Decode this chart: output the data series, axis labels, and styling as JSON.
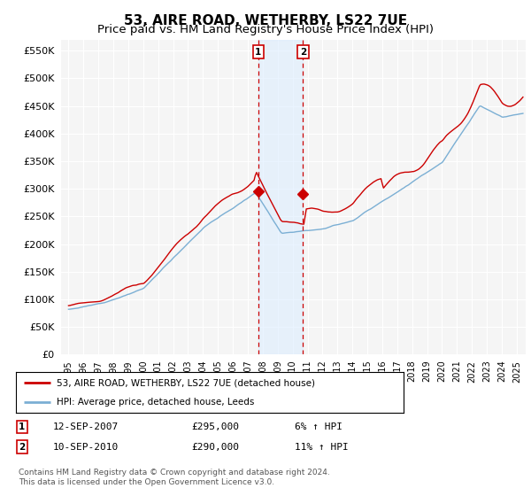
{
  "title": "53, AIRE ROAD, WETHERBY, LS22 7UE",
  "subtitle": "Price paid vs. HM Land Registry's House Price Index (HPI)",
  "title_fontsize": 11,
  "subtitle_fontsize": 9.5,
  "ylabel_values": [
    0,
    50000,
    100000,
    150000,
    200000,
    250000,
    300000,
    350000,
    400000,
    450000,
    500000,
    550000
  ],
  "ylim": [
    0,
    570000
  ],
  "xlim_start": 1994.5,
  "xlim_end": 2025.6,
  "background_color": "#ffffff",
  "plot_bg_color": "#f5f5f5",
  "grid_color": "#ffffff",
  "sale1_x": 2007.7,
  "sale1_y": 295000,
  "sale1_label": "1",
  "sale2_x": 2010.7,
  "sale2_y": 290000,
  "sale2_label": "2",
  "sale_color": "#cc0000",
  "hpi_line_color": "#7bafd4",
  "price_line_color": "#cc0000",
  "legend_label_price": "53, AIRE ROAD, WETHERBY, LS22 7UE (detached house)",
  "legend_label_hpi": "HPI: Average price, detached house, Leeds",
  "transaction1_num": "1",
  "transaction1_date": "12-SEP-2007",
  "transaction1_price": "£295,000",
  "transaction1_hpi": "6% ↑ HPI",
  "transaction2_num": "2",
  "transaction2_date": "10-SEP-2010",
  "transaction2_price": "£290,000",
  "transaction2_hpi": "11% ↑ HPI",
  "footnote": "Contains HM Land Registry data © Crown copyright and database right 2024.\nThis data is licensed under the Open Government Licence v3.0.",
  "shade_color": "#ddeeff"
}
